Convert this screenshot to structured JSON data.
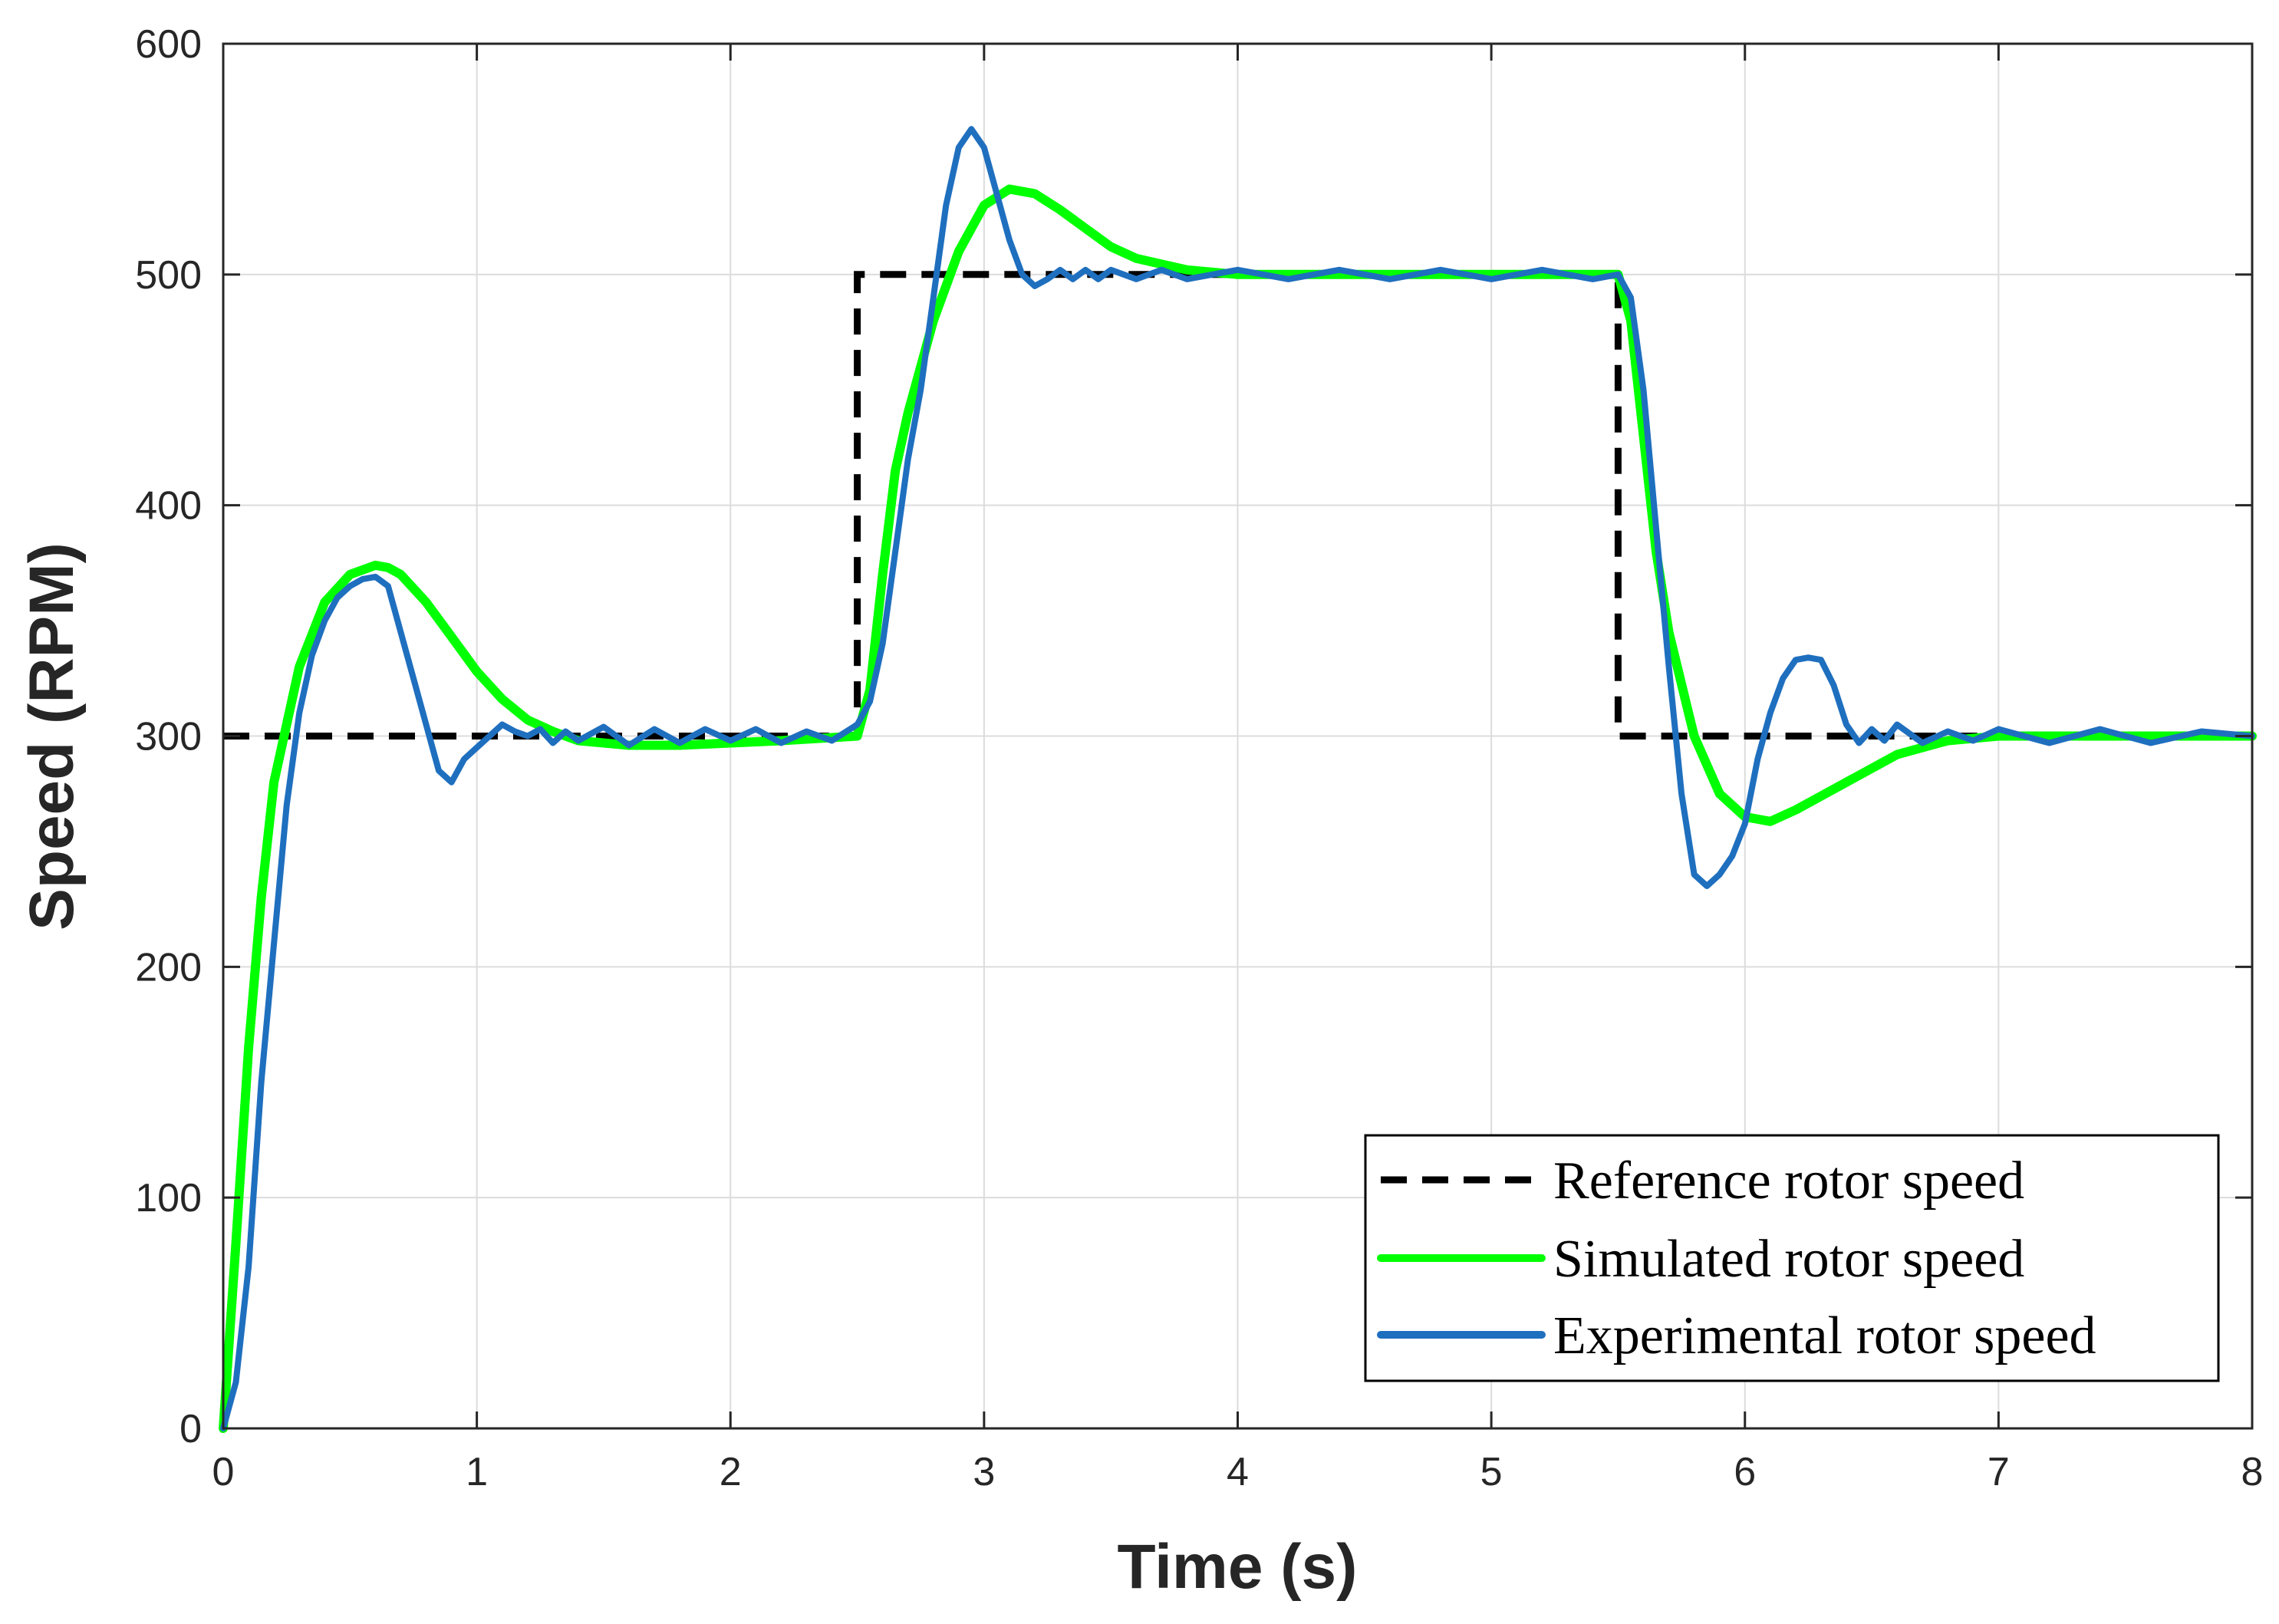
{
  "chart_data": {
    "type": "line",
    "title": "",
    "xlabel": "Time (s)",
    "ylabel": "Speed (RPM)",
    "xlim": [
      0,
      8
    ],
    "ylim": [
      0,
      600
    ],
    "xticks": [
      0,
      1,
      2,
      3,
      4,
      5,
      6,
      7,
      8
    ],
    "yticks": [
      0,
      100,
      200,
      300,
      400,
      500,
      600
    ],
    "grid": true,
    "legend_position": "bottom-right",
    "series": [
      {
        "name": "Reference rotor speed",
        "color": "#000000",
        "style": "dashed",
        "x": [
          0,
          2.5,
          2.5,
          5.5,
          5.5,
          8
        ],
        "y": [
          300,
          300,
          500,
          500,
          300,
          300
        ]
      },
      {
        "name": "Simulated rotor speed",
        "color": "#00ff00",
        "style": "solid",
        "x": [
          0,
          0.05,
          0.1,
          0.15,
          0.2,
          0.3,
          0.4,
          0.5,
          0.6,
          0.65,
          0.7,
          0.8,
          0.9,
          1.0,
          1.1,
          1.2,
          1.3,
          1.4,
          1.6,
          1.8,
          2.0,
          2.2,
          2.5,
          2.55,
          2.6,
          2.65,
          2.7,
          2.8,
          2.9,
          3.0,
          3.1,
          3.2,
          3.3,
          3.4,
          3.5,
          3.6,
          3.8,
          4.0,
          4.5,
          5.0,
          5.5,
          5.55,
          5.6,
          5.65,
          5.7,
          5.8,
          5.9,
          6.0,
          6.1,
          6.2,
          6.4,
          6.6,
          6.8,
          7.0,
          7.5,
          8.0
        ],
        "y": [
          0,
          80,
          165,
          230,
          280,
          330,
          358,
          370,
          374,
          373,
          370,
          358,
          343,
          328,
          316,
          307,
          302,
          298,
          296,
          296,
          297,
          298,
          300,
          320,
          370,
          415,
          440,
          480,
          510,
          530,
          537,
          535,
          528,
          520,
          512,
          507,
          502,
          500,
          500,
          500,
          500,
          480,
          430,
          380,
          345,
          300,
          275,
          265,
          263,
          268,
          280,
          292,
          298,
          300,
          300,
          300
        ]
      },
      {
        "name": "Experimental rotor speed",
        "color": "#1f6fbf",
        "style": "solid",
        "x": [
          0,
          0.05,
          0.1,
          0.15,
          0.2,
          0.25,
          0.3,
          0.35,
          0.4,
          0.45,
          0.5,
          0.55,
          0.6,
          0.65,
          0.7,
          0.75,
          0.8,
          0.85,
          0.9,
          0.95,
          1.0,
          1.05,
          1.1,
          1.15,
          1.2,
          1.25,
          1.3,
          1.35,
          1.4,
          1.5,
          1.6,
          1.7,
          1.8,
          1.9,
          2.0,
          2.1,
          2.2,
          2.3,
          2.4,
          2.5,
          2.55,
          2.6,
          2.65,
          2.7,
          2.75,
          2.8,
          2.85,
          2.9,
          2.95,
          3.0,
          3.05,
          3.1,
          3.15,
          3.2,
          3.25,
          3.3,
          3.35,
          3.4,
          3.45,
          3.5,
          3.6,
          3.7,
          3.8,
          4.0,
          4.2,
          4.4,
          4.6,
          4.8,
          5.0,
          5.2,
          5.4,
          5.5,
          5.55,
          5.6,
          5.65,
          5.7,
          5.75,
          5.8,
          5.85,
          5.9,
          5.95,
          6.0,
          6.05,
          6.1,
          6.15,
          6.2,
          6.25,
          6.3,
          6.35,
          6.4,
          6.45,
          6.5,
          6.55,
          6.6,
          6.7,
          6.8,
          6.9,
          7.0,
          7.2,
          7.4,
          7.6,
          7.8,
          8.0
        ],
        "y": [
          0,
          20,
          70,
          150,
          210,
          270,
          310,
          335,
          350,
          360,
          365,
          368,
          369,
          365,
          345,
          325,
          305,
          285,
          280,
          290,
          295,
          300,
          305,
          302,
          300,
          303,
          297,
          302,
          298,
          304,
          296,
          303,
          297,
          303,
          298,
          303,
          297,
          302,
          298,
          305,
          315,
          340,
          380,
          420,
          450,
          490,
          530,
          555,
          563,
          555,
          535,
          515,
          500,
          495,
          498,
          502,
          498,
          502,
          498,
          502,
          498,
          502,
          498,
          502,
          498,
          502,
          498,
          502,
          498,
          502,
          498,
          500,
          490,
          450,
          390,
          330,
          275,
          240,
          235,
          240,
          248,
          262,
          290,
          310,
          325,
          333,
          334,
          333,
          322,
          305,
          297,
          303,
          298,
          305,
          297,
          302,
          298,
          303,
          297,
          303,
          297,
          302,
          300
        ]
      }
    ]
  }
}
